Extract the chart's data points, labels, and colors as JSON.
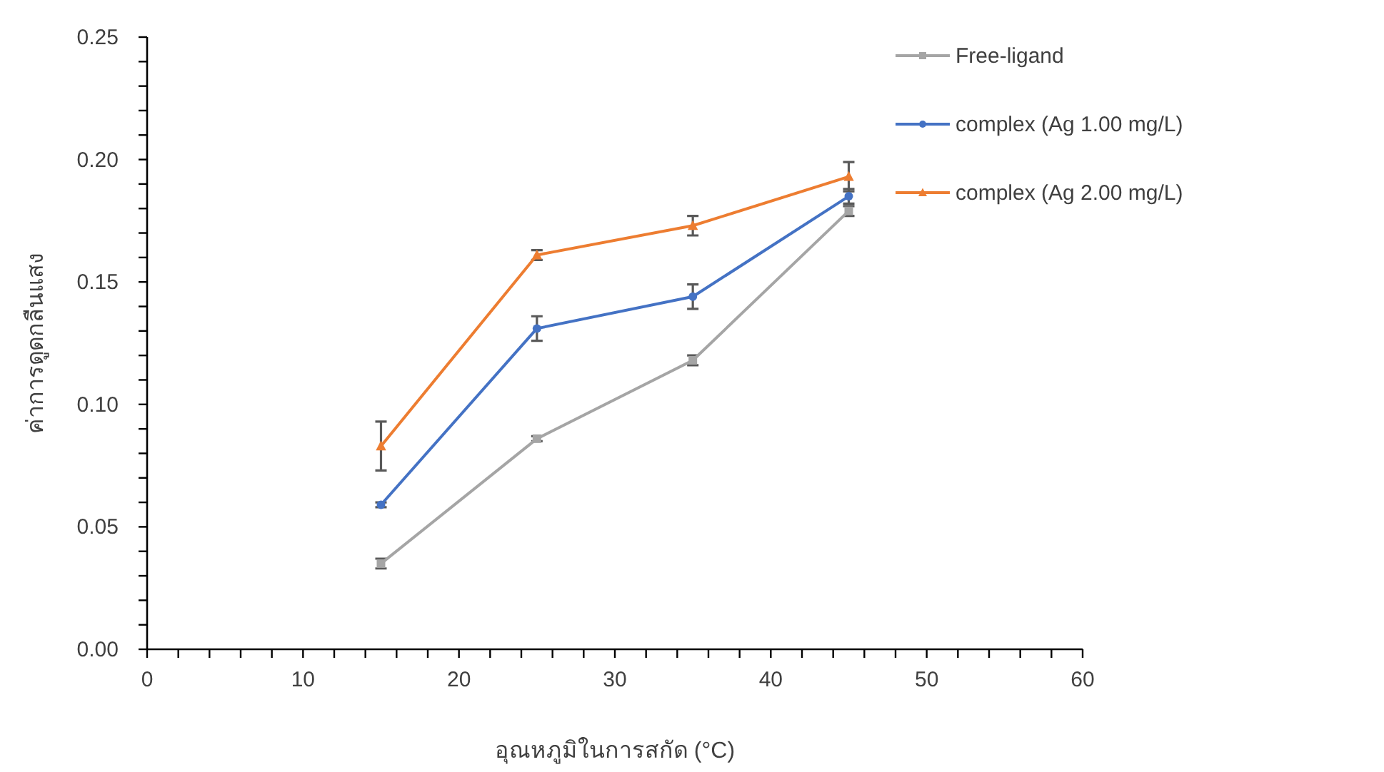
{
  "chart_data": {
    "type": "line",
    "xlabel": "อุณหภูมิในการสกัด (°C)",
    "ylabel": "ค่าการดูดกลืนแสง",
    "x": [
      15,
      25,
      35,
      45
    ],
    "xlim": [
      0,
      60
    ],
    "xticks": [
      0,
      {
        "value": 2,
        "label": null
      },
      {
        "value": 4,
        "label": null
      },
      {
        "value": 6,
        "label": null
      },
      {
        "value": 8,
        "label": null
      },
      10,
      {
        "value": 12,
        "label": null
      },
      {
        "value": 14,
        "label": null
      },
      {
        "value": 16,
        "label": null
      },
      {
        "value": 18,
        "label": null
      },
      20,
      {
        "value": 22,
        "label": null
      },
      {
        "value": 24,
        "label": null
      },
      {
        "value": 26,
        "label": null
      },
      {
        "value": 28,
        "label": null
      },
      30,
      {
        "value": 32,
        "label": null
      },
      {
        "value": 34,
        "label": null
      },
      {
        "value": 36,
        "label": null
      },
      {
        "value": 38,
        "label": null
      },
      40,
      {
        "value": 42,
        "label": null
      },
      {
        "value": 44,
        "label": null
      },
      {
        "value": 46,
        "label": null
      },
      {
        "value": 48,
        "label": null
      },
      50,
      {
        "value": 52,
        "label": null
      },
      {
        "value": 54,
        "label": null
      },
      {
        "value": 56,
        "label": null
      },
      {
        "value": 58,
        "label": null
      },
      60
    ],
    "ylim": [
      0,
      0.25
    ],
    "yticks": [
      {
        "value": 0,
        "label": "0.00"
      },
      {
        "value": 0.01,
        "label": null
      },
      {
        "value": 0.02,
        "label": null
      },
      {
        "value": 0.03,
        "label": null
      },
      {
        "value": 0.04,
        "label": null
      },
      {
        "value": 0.05,
        "label": "0.05"
      },
      {
        "value": 0.06,
        "label": null
      },
      {
        "value": 0.07,
        "label": null
      },
      {
        "value": 0.08,
        "label": null
      },
      {
        "value": 0.09,
        "label": null
      },
      {
        "value": 0.1,
        "label": "0.10"
      },
      {
        "value": 0.11,
        "label": null
      },
      {
        "value": 0.12,
        "label": null
      },
      {
        "value": 0.13,
        "label": null
      },
      {
        "value": 0.14,
        "label": null
      },
      {
        "value": 0.15,
        "label": "0.15"
      },
      {
        "value": 0.16,
        "label": null
      },
      {
        "value": 0.17,
        "label": null
      },
      {
        "value": 0.18,
        "label": null
      },
      {
        "value": 0.19,
        "label": null
      },
      {
        "value": 0.2,
        "label": "0.20"
      },
      {
        "value": 0.21,
        "label": null
      },
      {
        "value": 0.22,
        "label": null
      },
      {
        "value": 0.23,
        "label": null
      },
      {
        "value": 0.24,
        "label": null
      },
      {
        "value": 0.25,
        "label": "0.25"
      }
    ],
    "grid": false,
    "legend": "top right",
    "series": [
      {
        "name": "Free-ligand",
        "color": "#a5a5a5",
        "marker": "square",
        "values": [
          0.035,
          0.086,
          0.118,
          0.179
        ],
        "errors": [
          0.002,
          0.001,
          0.002,
          0.002
        ]
      },
      {
        "name": "complex (Ag 1.00 mg/L)",
        "color": "#4472c4",
        "marker": "circle",
        "values": [
          0.059,
          0.131,
          0.144,
          0.185
        ],
        "errors": [
          0.001,
          0.005,
          0.005,
          0.003
        ]
      },
      {
        "name": "complex (Ag 2.00 mg/L)",
        "color": "#ed7d31",
        "marker": "triangle",
        "values": [
          0.083,
          0.161,
          0.173,
          0.193
        ],
        "errors": [
          0.01,
          0.002,
          0.004,
          0.006
        ]
      }
    ]
  }
}
